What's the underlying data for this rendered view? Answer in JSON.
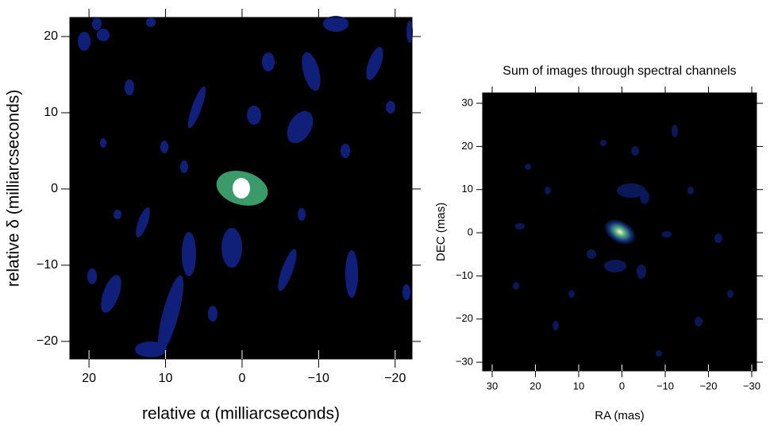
{
  "chart_data": [
    {
      "type": "image",
      "x_label": "relative α (milliarcseconds)",
      "y_label": "relative δ (milliarcseconds)",
      "xlim": [
        22.5,
        -22.2
      ],
      "ylim": [
        -22.3,
        22.5
      ],
      "xticks": [
        20,
        10,
        0,
        {
          "value": -10,
          "label": "−10"
        },
        {
          "value": -20,
          "label": "−20"
        }
      ],
      "yticks": [
        20,
        10,
        0,
        {
          "value": -10,
          "label": "−10"
        },
        {
          "value": -20,
          "label": "−20"
        }
      ]
    },
    {
      "type": "image",
      "title": "Sum of images through spectral channels",
      "x_label": "RA (mas)",
      "y_label": "DEC (mas)",
      "xlim": [
        32.2,
        -31.1
      ],
      "ylim": [
        -32.0,
        32.4
      ],
      "xticks": [
        30,
        20,
        10,
        0,
        {
          "value": -10,
          "label": "−10"
        },
        {
          "value": -20,
          "label": "−20"
        },
        {
          "value": -30,
          "label": "−30"
        }
      ],
      "yticks": [
        30,
        20,
        10,
        0,
        {
          "value": -10,
          "label": "−10"
        },
        {
          "value": -20,
          "label": "−20"
        },
        {
          "value": -30,
          "label": "−30"
        }
      ]
    }
  ]
}
